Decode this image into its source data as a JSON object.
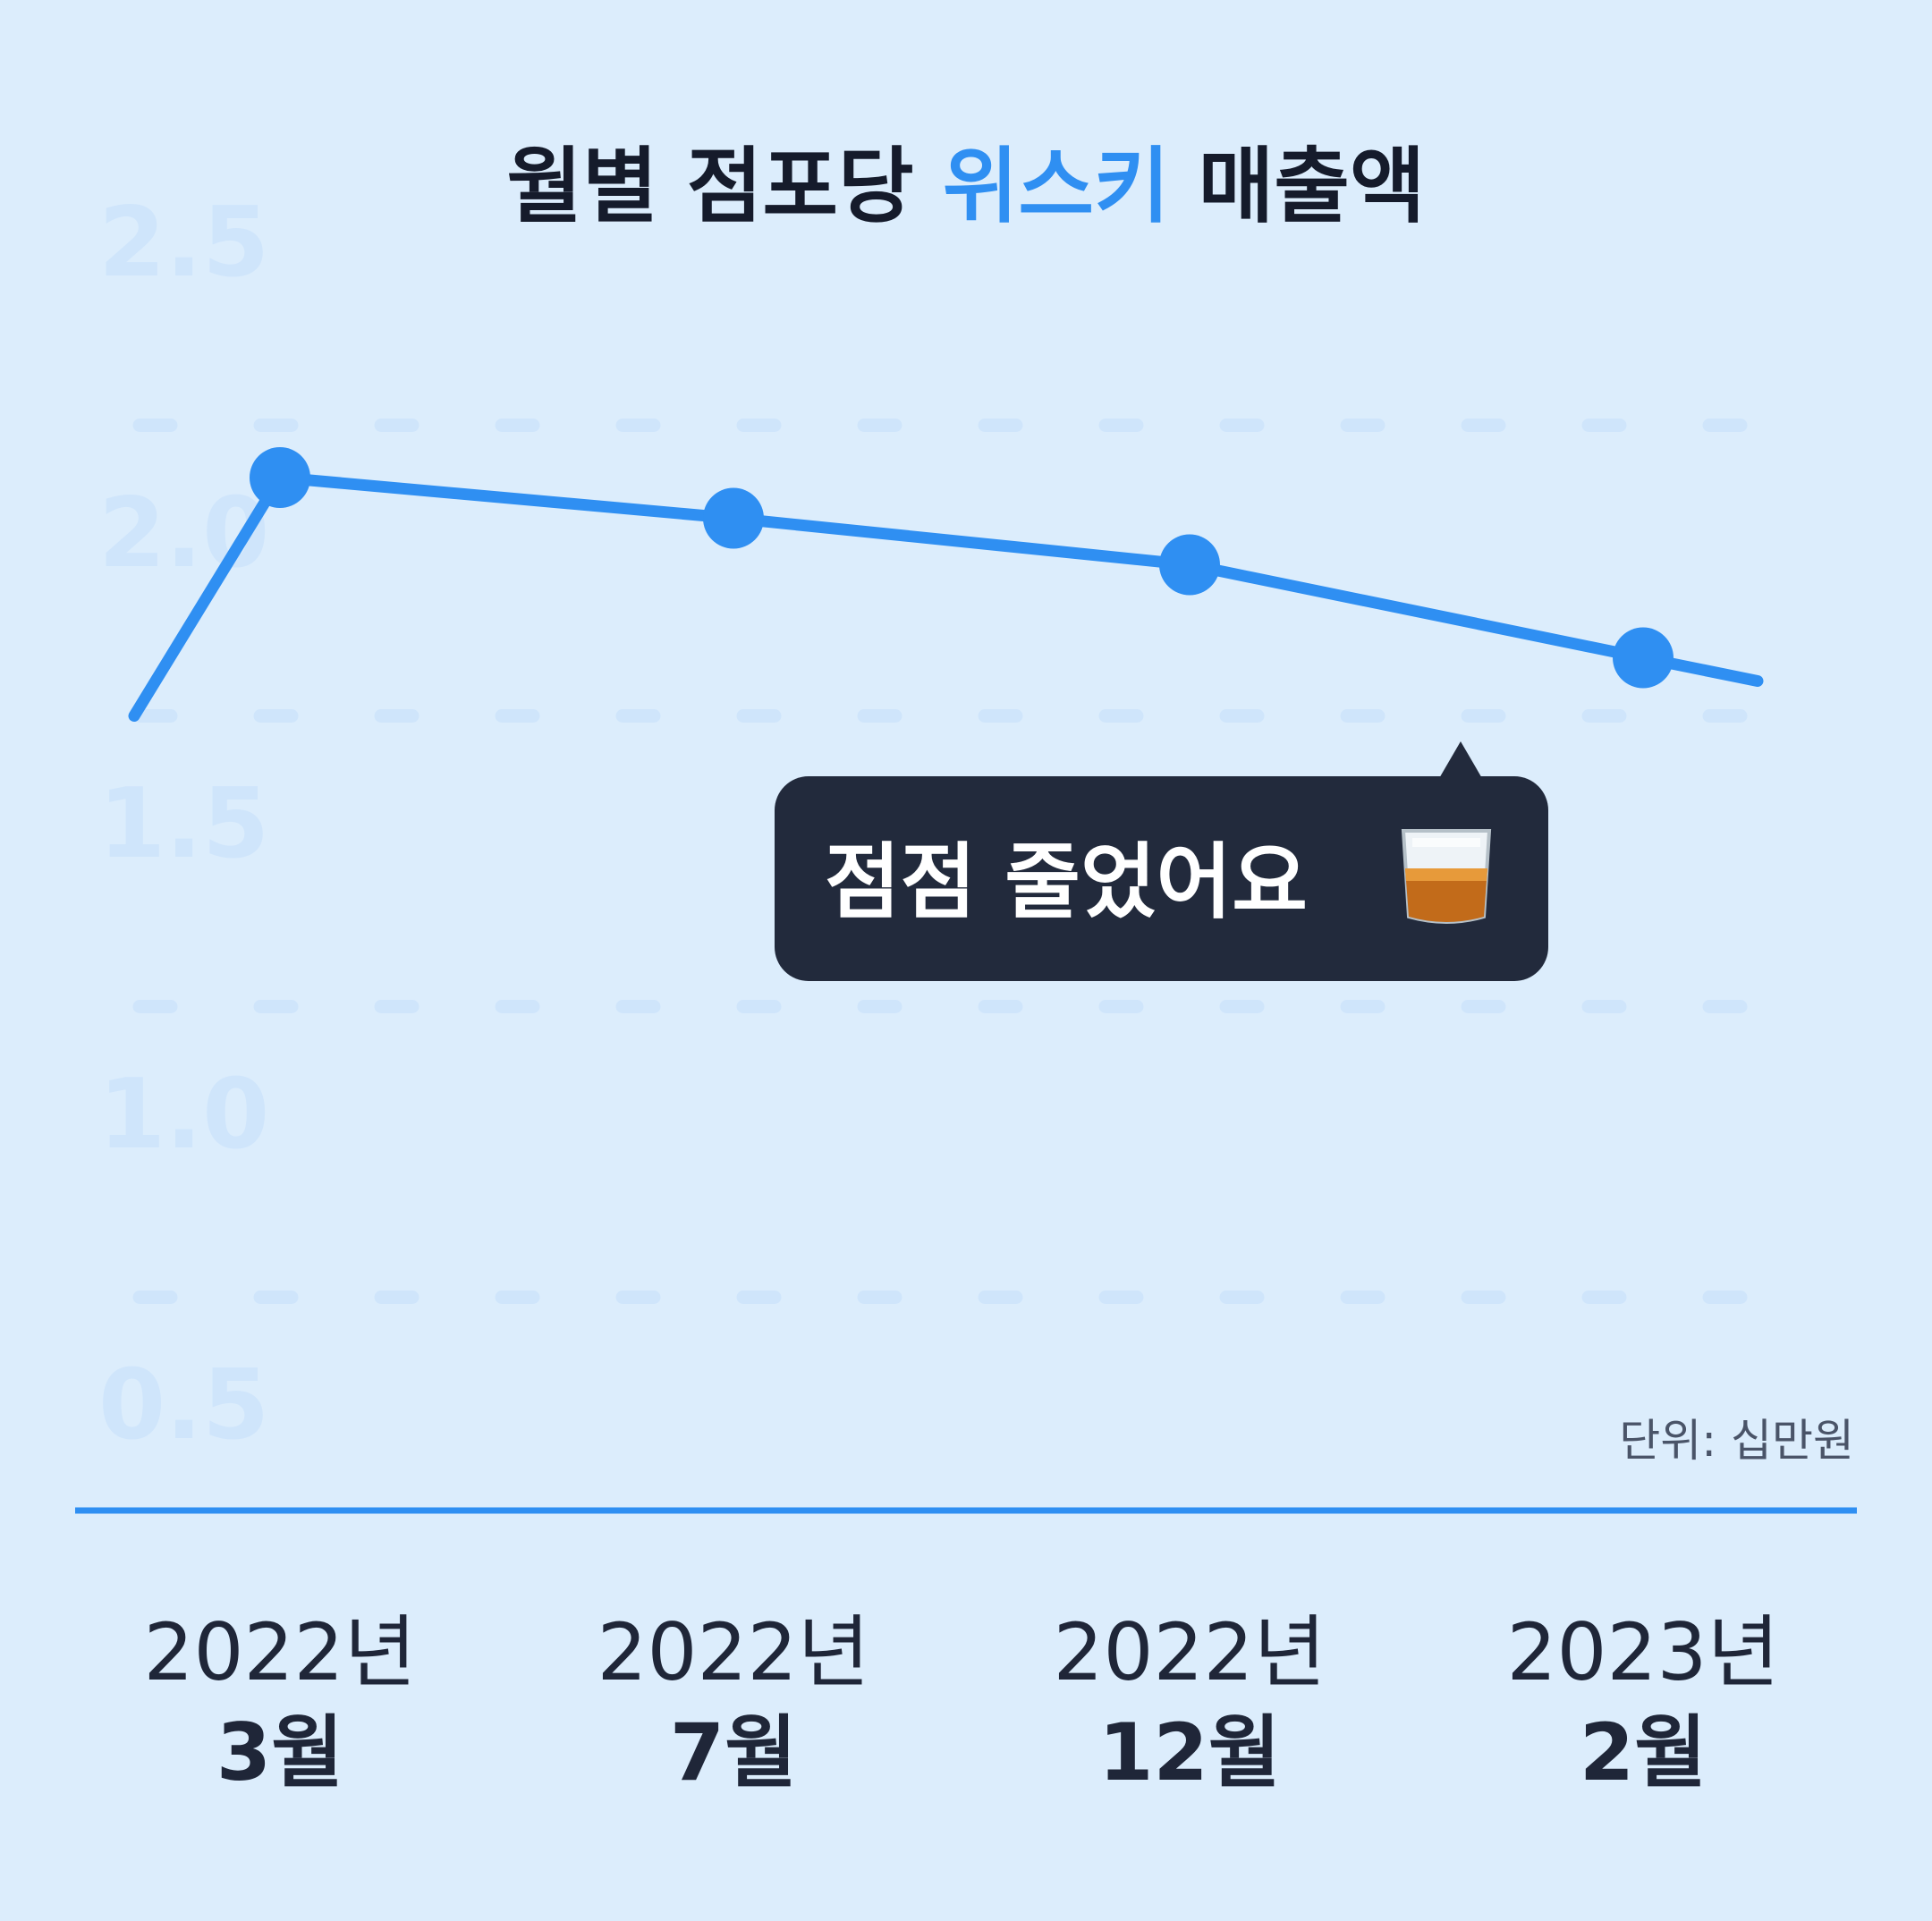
{
  "colors": {
    "background": "#dcedfc",
    "accent": "#2f8ff2",
    "title_text": "#151b2b",
    "gridline": "#cfe5fb",
    "callout_background": "#222a3c"
  },
  "chart_data": {
    "type": "line",
    "title_parts": [
      "월별 점포당 ",
      "위스키",
      " 매출액"
    ],
    "title_highlight": "위스키",
    "unit_label": "단위: 십만원",
    "yticks": [
      "2.5",
      "2.0",
      "1.5",
      "1.0",
      "0.5"
    ],
    "ylim": [
      0.5,
      2.5
    ],
    "grid": true,
    "x_categories": [
      {
        "year": "2022년",
        "month": "3월"
      },
      {
        "year": "2022년",
        "month": "7월"
      },
      {
        "year": "2022년",
        "month": "12월"
      },
      {
        "year": "2023년",
        "month": "2월"
      }
    ],
    "series": [
      {
        "values": [
          2.14,
          2.07,
          1.99,
          1.83
        ],
        "marker": "circle"
      }
    ],
    "annotation": {
      "text": "점점 줄었어요",
      "icon": "whisky-glass-icon"
    }
  }
}
